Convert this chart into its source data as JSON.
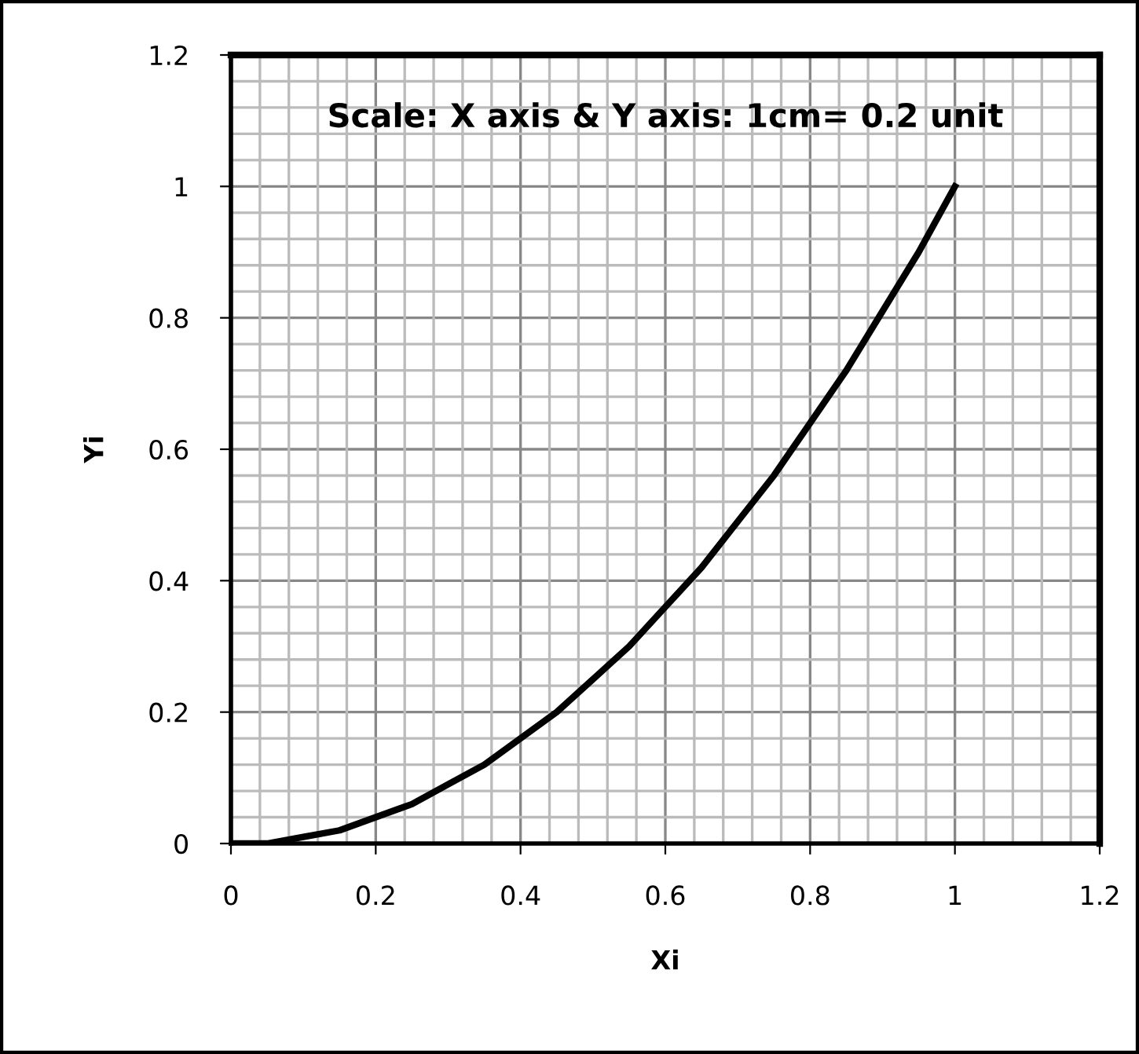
{
  "chart_data": {
    "type": "line",
    "xlabel": "Xi",
    "ylabel": "Yi",
    "annotations": [
      "Scale: X axis & Y axis: 1cm= 0.2 unit"
    ],
    "x": [
      0,
      0.05,
      0.1,
      0.15,
      0.2,
      0.25,
      0.3,
      0.35,
      0.4,
      0.45,
      0.5,
      0.55,
      0.6,
      0.65,
      0.7,
      0.75,
      0.8,
      0.85,
      0.9,
      0.95,
      1
    ],
    "series": [
      {
        "color": "#000000",
        "values": [
          0,
          0.0,
          0.01,
          0.02,
          0.04,
          0.06,
          0.09,
          0.12,
          0.16,
          0.2,
          0.25,
          0.3,
          0.36,
          0.42,
          0.49,
          0.56,
          0.64,
          0.72,
          0.81,
          0.9,
          1
        ]
      }
    ],
    "xlim": [
      0,
      1.2
    ],
    "xticks": [
      0,
      0.2,
      0.4,
      0.6,
      0.8,
      1,
      1.2
    ],
    "ylim": [
      0,
      1.2
    ],
    "yticks": [
      0,
      0.2,
      0.4,
      0.6,
      0.8,
      1,
      1.2
    ],
    "grid": true,
    "legend": false,
    "marker": "none",
    "line_style": "solid"
  }
}
